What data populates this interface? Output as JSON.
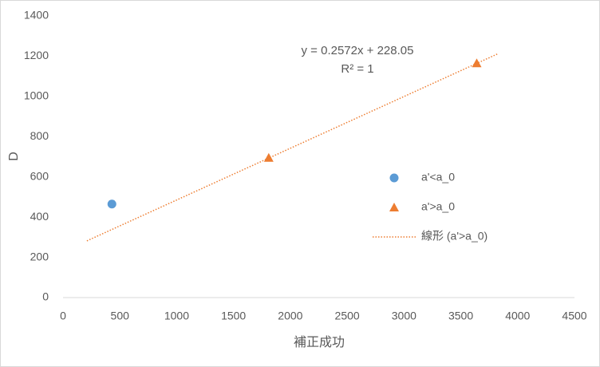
{
  "chart_data": {
    "type": "scatter",
    "xlabel": "補正成功",
    "ylabel": "D",
    "xlim": [
      0,
      4500
    ],
    "xticks": [
      0,
      500,
      1000,
      1500,
      2000,
      2500,
      3000,
      3500,
      4000,
      4500
    ],
    "ylim": [
      0,
      1400
    ],
    "yticks": [
      0,
      200,
      400,
      600,
      800,
      1000,
      1200,
      1400
    ],
    "grid": false,
    "legend": "right",
    "series": [
      {
        "name": "a'<a_0",
        "color": "#5b9bd5",
        "marker": "circle",
        "x": [
          430
        ],
        "values": [
          465
        ]
      },
      {
        "name": "a'>a_0",
        "color": "#ed7d31",
        "marker": "triangle",
        "x": [
          1810,
          3640
        ],
        "values": [
          695,
          1165
        ]
      }
    ],
    "trendline": {
      "name": "線形 (a'>a_0)",
      "color": "#ed7d31",
      "equation": "y = 0.2572x + 228.05",
      "r2": "R² = 1",
      "x": [
        210,
        3830
      ],
      "values": [
        282,
        1213
      ]
    }
  }
}
